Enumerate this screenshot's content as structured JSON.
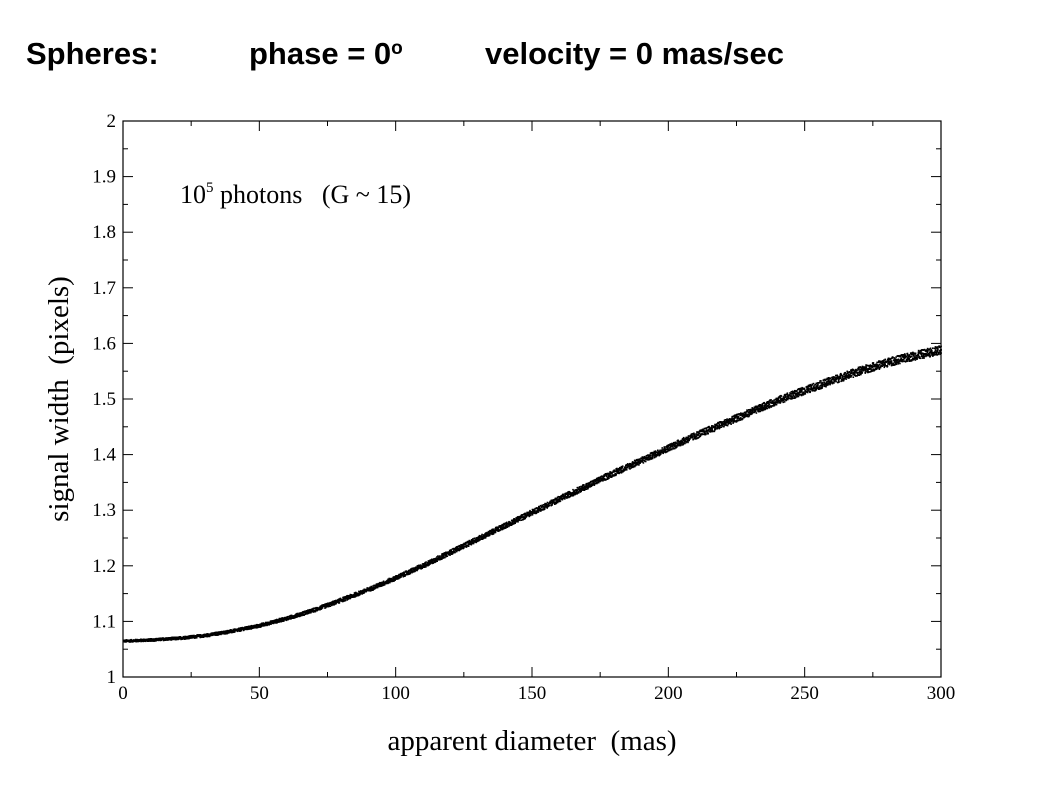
{
  "slide_title": {
    "part1": "Spheres:",
    "part2_prefix": "phase = 0",
    "part2_sup": "o",
    "part3": "velocity = 0 mas/sec"
  },
  "chart_data": {
    "type": "scatter",
    "title": "",
    "annotation": {
      "base": "10",
      "exponent": "5",
      "text": " photons   (G ~ 15)"
    },
    "xlabel": "apparent diameter  (mas)",
    "ylabel": "signal width  (pixels)",
    "xlim": [
      0,
      300
    ],
    "ylim": [
      1,
      2
    ],
    "x_ticks": [
      0,
      50,
      100,
      150,
      200,
      250,
      300
    ],
    "y_ticks": [
      1,
      1.1,
      1.2,
      1.3,
      1.4,
      1.5,
      1.6,
      1.7,
      1.8,
      1.9,
      2
    ],
    "grid": false,
    "color": "#000000",
    "series": [
      {
        "x": [
          0,
          10,
          20,
          30,
          40,
          50,
          60,
          70,
          80,
          90,
          100,
          110,
          120,
          130,
          140,
          150,
          160,
          170,
          180,
          190,
          200,
          210,
          220,
          230,
          240,
          250,
          260,
          270,
          280,
          290,
          300
        ],
        "y": [
          1.066,
          1.068,
          1.071,
          1.076,
          1.084,
          1.094,
          1.107,
          1.122,
          1.14,
          1.159,
          1.18,
          1.202,
          1.226,
          1.25,
          1.274,
          1.298,
          1.322,
          1.345,
          1.369,
          1.391,
          1.414,
          1.436,
          1.457,
          1.478,
          1.499,
          1.517,
          1.535,
          1.552,
          1.567,
          1.579,
          1.59
        ]
      }
    ]
  }
}
